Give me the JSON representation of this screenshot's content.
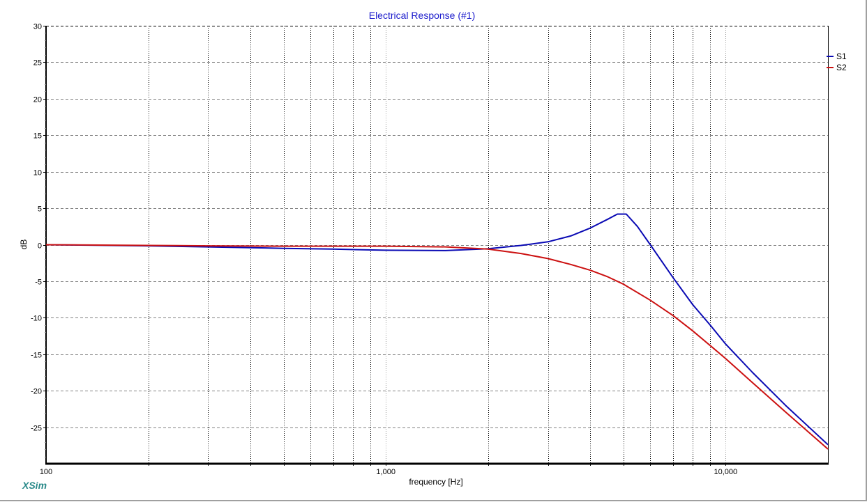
{
  "window": {
    "title": "Electrical Response (#1)",
    "brand": "XSim"
  },
  "colors": {
    "title": "#1a1acc",
    "S1": "#0a0ab4",
    "S2": "#cc1111",
    "grid": "#808080",
    "brand": "#2a8a8a"
  },
  "chart_data": {
    "type": "line",
    "title": "Electrical Response (#1)",
    "xlabel": "frequency [Hz]",
    "ylabel": "dB",
    "xscale": "log",
    "xlim": [
      100,
      20000
    ],
    "ylim": [
      -30,
      30
    ],
    "x_tick_labels": [
      "100",
      "1,000",
      "10,000"
    ],
    "x_tick_values": [
      100,
      1000,
      10000
    ],
    "y_tick_labels": [
      "30",
      "25",
      "20",
      "15",
      "10",
      "5",
      "0",
      "-5",
      "-10",
      "-15",
      "-20",
      "-25"
    ],
    "y_tick_values": [
      30,
      25,
      20,
      15,
      10,
      5,
      0,
      -5,
      -10,
      -15,
      -20,
      -25
    ],
    "grid": true,
    "legend_position": "right",
    "series": [
      {
        "name": "S1",
        "color": "#0a0ab4",
        "x": [
          100,
          200,
          300,
          400,
          500,
          700,
          1000,
          1500,
          2000,
          2500,
          3000,
          3500,
          4000,
          4500,
          4800,
          5100,
          5500,
          6000,
          7000,
          8000,
          9000,
          10000,
          12000,
          15000,
          20000
        ],
        "y": [
          0,
          -0.15,
          -0.3,
          -0.4,
          -0.5,
          -0.6,
          -0.75,
          -0.8,
          -0.55,
          -0.1,
          0.4,
          1.2,
          2.3,
          3.5,
          4.2,
          4.2,
          2.5,
          0.0,
          -4.5,
          -8.2,
          -11.0,
          -13.6,
          -17.5,
          -22.0,
          -27.4
        ]
      },
      {
        "name": "S2",
        "color": "#cc1111",
        "x": [
          100,
          200,
          300,
          500,
          700,
          1000,
          1500,
          2000,
          2500,
          3000,
          3500,
          4000,
          4500,
          5000,
          6000,
          7000,
          8000,
          9000,
          10000,
          12000,
          15000,
          20000
        ],
        "y": [
          0,
          -0.1,
          -0.15,
          -0.2,
          -0.2,
          -0.2,
          -0.3,
          -0.6,
          -1.2,
          -1.9,
          -2.7,
          -3.5,
          -4.4,
          -5.4,
          -7.6,
          -9.7,
          -11.8,
          -13.8,
          -15.6,
          -18.9,
          -22.9,
          -28.0
        ]
      }
    ]
  }
}
